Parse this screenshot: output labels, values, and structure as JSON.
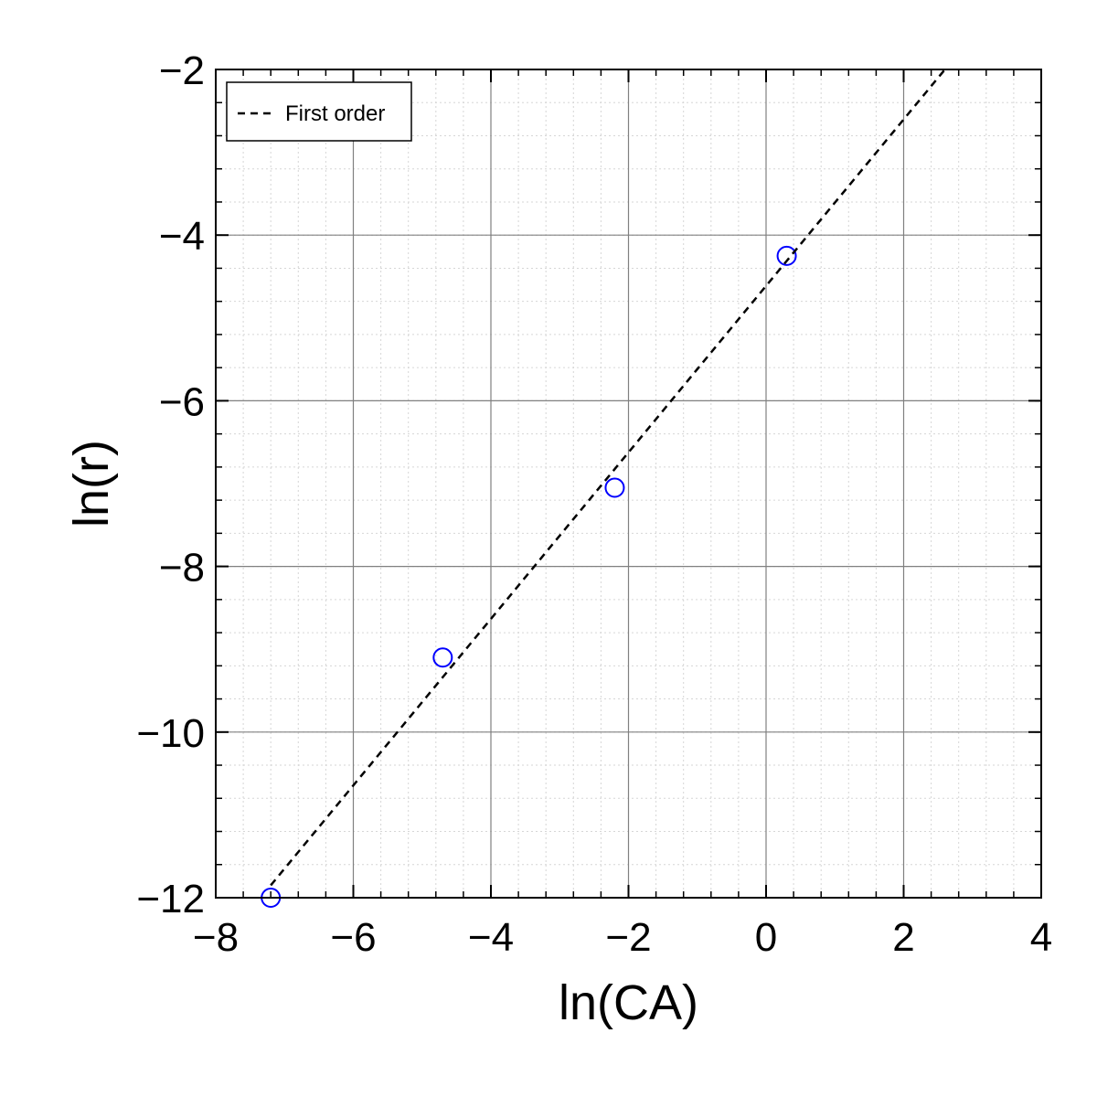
{
  "chart_data": {
    "type": "scatter",
    "title": "",
    "xlabel": "ln(CA)",
    "ylabel": "ln(r)",
    "xlim": [
      -8,
      4
    ],
    "ylim": [
      -12,
      -2
    ],
    "xticks": [
      -8,
      -6,
      -4,
      -2,
      0,
      2,
      4
    ],
    "yticks": [
      -12,
      -10,
      -8,
      -6,
      -4,
      -2
    ],
    "xtick_labels": [
      "−8",
      "−6",
      "−4",
      "−2",
      "0",
      "2",
      "4"
    ],
    "ytick_labels": [
      "−12",
      "−10",
      "−8",
      "−6",
      "−4",
      "−2"
    ],
    "grid": true,
    "minor_grid": true,
    "legend_position": "top-left",
    "series": [
      {
        "kind": "markers",
        "marker": "open-circle",
        "color": "#0000ff",
        "x": [
          -7.2,
          -4.7,
          -2.2,
          0.3
        ],
        "y": [
          -12.0,
          -9.1,
          -7.05,
          -4.25
        ]
      },
      {
        "name": "First order",
        "kind": "line",
        "style": "dashed",
        "color": "#000000",
        "x": [
          -7.2,
          2.6
        ],
        "y": [
          -11.85,
          -2.0
        ]
      }
    ]
  }
}
